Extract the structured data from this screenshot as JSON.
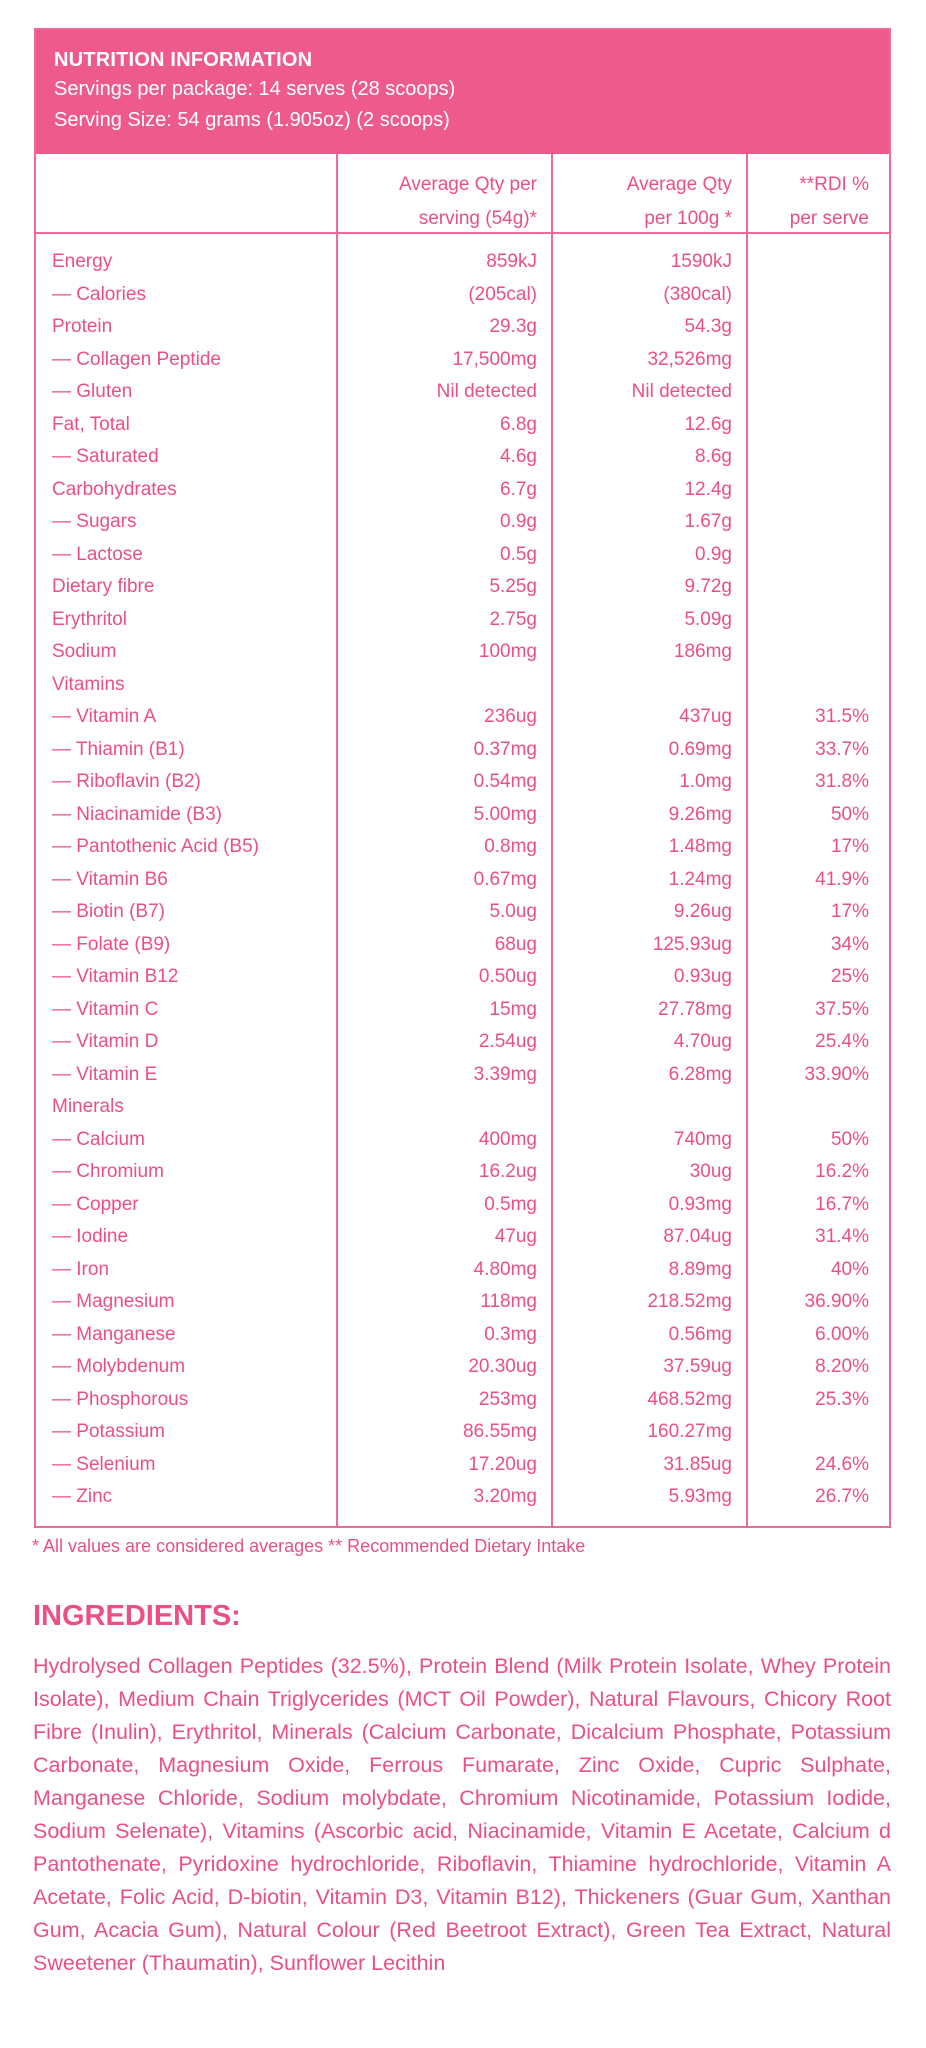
{
  "nutrition": {
    "title": "NUTRITION INFORMATION",
    "servings_per_package": "Servings per package: 14 serves (28 scoops)",
    "serving_size": "Serving Size: 54 grams (1.905oz) (2 scoops)",
    "columns": [
      {
        "line1": "",
        "line2": ""
      },
      {
        "line1": "Average Qty per",
        "line2": "serving (54g)*"
      },
      {
        "line1": "Average Qty",
        "line2": "per 100g *"
      },
      {
        "line1": "**RDI %",
        "line2": "per serve"
      }
    ],
    "rows": [
      [
        "Energy",
        "859kJ",
        "1590kJ",
        ""
      ],
      [
        "— Calories",
        "(205cal)",
        "(380cal)",
        ""
      ],
      [
        "Protein",
        "29.3g",
        "54.3g",
        ""
      ],
      [
        "— Collagen Peptide",
        "17,500mg",
        "32,526mg",
        ""
      ],
      [
        "— Gluten",
        "Nil detected",
        "Nil detected",
        ""
      ],
      [
        "Fat, Total",
        "6.8g",
        "12.6g",
        ""
      ],
      [
        "— Saturated",
        "4.6g",
        "8.6g",
        ""
      ],
      [
        "Carbohydrates",
        "6.7g",
        "12.4g",
        ""
      ],
      [
        "— Sugars",
        "0.9g",
        "1.67g",
        ""
      ],
      [
        "— Lactose",
        "0.5g",
        "0.9g",
        ""
      ],
      [
        "Dietary fibre",
        "5.25g",
        "9.72g",
        ""
      ],
      [
        "Erythritol",
        "2.75g",
        "5.09g",
        ""
      ],
      [
        "Sodium",
        "100mg",
        "186mg",
        ""
      ],
      [
        "Vitamins",
        "",
        "",
        ""
      ],
      [
        "— Vitamin A",
        "236ug",
        "437ug",
        "31.5%"
      ],
      [
        "— Thiamin (B1)",
        "0.37mg",
        "0.69mg",
        "33.7%"
      ],
      [
        "— Riboflavin (B2)",
        "0.54mg",
        "1.0mg",
        "31.8%"
      ],
      [
        "— Niacinamide (B3)",
        "5.00mg",
        "9.26mg",
        "50%"
      ],
      [
        "— Pantothenic Acid (B5)",
        "0.8mg",
        "1.48mg",
        "17%"
      ],
      [
        "— Vitamin B6",
        "0.67mg",
        "1.24mg",
        "41.9%"
      ],
      [
        "— Biotin (B7)",
        "5.0ug",
        "9.26ug",
        "17%"
      ],
      [
        "— Folate (B9)",
        "68ug",
        "125.93ug",
        "34%"
      ],
      [
        "— Vitamin B12",
        "0.50ug",
        "0.93ug",
        "25%"
      ],
      [
        "— Vitamin C",
        "15mg",
        "27.78mg",
        "37.5%"
      ],
      [
        "— Vitamin D",
        "2.54ug",
        "4.70ug",
        "25.4%"
      ],
      [
        "— Vitamin E",
        "3.39mg",
        "6.28mg",
        "33.90%"
      ],
      [
        "Minerals",
        "",
        "",
        ""
      ],
      [
        "— Calcium",
        "400mg",
        "740mg",
        "50%"
      ],
      [
        "— Chromium",
        "16.2ug",
        "30ug",
        "16.2%"
      ],
      [
        "— Copper",
        "0.5mg",
        "0.93mg",
        "16.7%"
      ],
      [
        "— Iodine",
        "47ug",
        "87.04ug",
        "31.4%"
      ],
      [
        "— Iron",
        "4.80mg",
        "8.89mg",
        "40%"
      ],
      [
        "— Magnesium",
        "118mg",
        "218.52mg",
        "36.90%"
      ],
      [
        "— Manganese",
        "0.3mg",
        "0.56mg",
        "6.00%"
      ],
      [
        "— Molybdenum",
        "20.30ug",
        "37.59ug",
        "8.20%"
      ],
      [
        "— Phosphorous",
        "253mg",
        "468.52mg",
        "25.3%"
      ],
      [
        "— Potassium",
        "86.55mg",
        "160.27mg",
        ""
      ],
      [
        "— Selenium",
        "17.20ug",
        "31.85ug",
        "24.6%"
      ],
      [
        "— Zinc",
        "3.20mg",
        "5.93mg",
        "26.7%"
      ]
    ],
    "footnote": "* All values are considered averages  ** Recommended Dietary Intake"
  },
  "ingredients": {
    "heading": "INGREDIENTS:",
    "text": "Hydrolysed Collagen Peptides (32.5%), Protein Blend (Milk Protein Isolate, Whey Protein Isolate), Medium Chain Triglycerides (MCT Oil Powder), Natural Flavours, Chicory Root Fibre (Inulin), Erythritol, Minerals (Calcium Carbonate, Dicalcium Phosphate, Potassium Carbonate, Magnesium Oxide, Ferrous Fumarate, Zinc Oxide, Cupric Sulphate, Manganese Chloride, Sodium molybdate, Chromium Nicotinamide, Potassium Iodide, Sodium Selenate), Vitamins (Ascorbic acid, Niacinamide, Vitamin E Acetate, Calcium d Pantothenate, Pyridoxine hydrochloride, Riboflavin, Thiamine hydrochloride, Vitamin A Acetate, Folic Acid, D-biotin, Vitamin D3, Vitamin B12), Thickeners (Guar Gum, Xanthan Gum, Acacia Gum), Natural Colour (Red Beetroot Extract), Green Tea Extract, Natural Sweetener (Thaumatin), Sunflower Lecithin"
  },
  "colors": {
    "accent": "#ef5a8e",
    "text": "#ec4f86"
  }
}
